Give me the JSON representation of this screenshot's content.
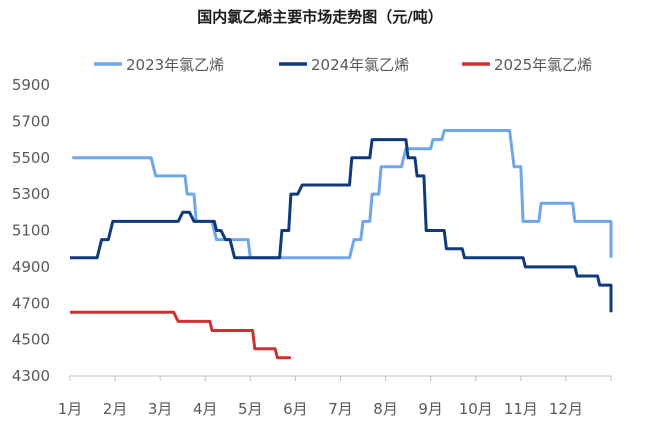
{
  "chart_data": {
    "type": "line",
    "title": "国内氯乙烯主要市场走势图（元/吨）",
    "xlabel": "",
    "ylabel": "",
    "ylim": [
      4300,
      5900
    ],
    "yticks": [
      4300,
      4500,
      4700,
      4900,
      5100,
      5300,
      5500,
      5700,
      5900
    ],
    "xlim": [
      1,
      13
    ],
    "categories": [
      "1月",
      "2月",
      "3月",
      "4月",
      "5月",
      "6月",
      "7月",
      "8月",
      "9月",
      "10月",
      "11月",
      "12月"
    ],
    "grid": false,
    "legend_position": "top",
    "series": [
      {
        "name": "2023年氯乙烯",
        "color": "#6fa7e8",
        "points": [
          [
            1.05,
            5500
          ],
          [
            2.8,
            5500
          ],
          [
            2.9,
            5400
          ],
          [
            3.55,
            5400
          ],
          [
            3.6,
            5300
          ],
          [
            3.75,
            5300
          ],
          [
            3.8,
            5150
          ],
          [
            4.15,
            5150
          ],
          [
            4.25,
            5050
          ],
          [
            4.95,
            5050
          ],
          [
            5.0,
            4950
          ],
          [
            7.2,
            4950
          ],
          [
            7.3,
            5050
          ],
          [
            7.45,
            5050
          ],
          [
            7.5,
            5150
          ],
          [
            7.65,
            5150
          ],
          [
            7.7,
            5300
          ],
          [
            7.85,
            5300
          ],
          [
            7.9,
            5450
          ],
          [
            8.35,
            5450
          ],
          [
            8.45,
            5550
          ],
          [
            9.0,
            5550
          ],
          [
            9.05,
            5600
          ],
          [
            9.25,
            5600
          ],
          [
            9.3,
            5650
          ],
          [
            10.75,
            5650
          ],
          [
            10.85,
            5450
          ],
          [
            11.0,
            5450
          ],
          [
            11.05,
            5150
          ],
          [
            11.4,
            5150
          ],
          [
            11.45,
            5250
          ],
          [
            12.15,
            5250
          ],
          [
            12.2,
            5150
          ],
          [
            13.0,
            5150
          ],
          [
            13.1,
            4950
          ],
          [
            13.2,
            4950
          ]
        ]
      },
      {
        "name": "2024年氯乙烯",
        "color": "#0f3a7c",
        "points": [
          [
            1.0,
            4950
          ],
          [
            1.6,
            4950
          ],
          [
            1.7,
            5050
          ],
          [
            1.85,
            5050
          ],
          [
            1.95,
            5150
          ],
          [
            3.4,
            5150
          ],
          [
            3.5,
            5200
          ],
          [
            3.65,
            5200
          ],
          [
            3.75,
            5150
          ],
          [
            4.2,
            5150
          ],
          [
            4.25,
            5100
          ],
          [
            4.35,
            5100
          ],
          [
            4.45,
            5050
          ],
          [
            4.55,
            5050
          ],
          [
            4.65,
            4950
          ],
          [
            5.65,
            4950
          ],
          [
            5.7,
            5100
          ],
          [
            5.85,
            5100
          ],
          [
            5.9,
            5300
          ],
          [
            6.05,
            5300
          ],
          [
            6.15,
            5350
          ],
          [
            7.2,
            5350
          ],
          [
            7.25,
            5500
          ],
          [
            7.65,
            5500
          ],
          [
            7.7,
            5600
          ],
          [
            8.45,
            5600
          ],
          [
            8.5,
            5500
          ],
          [
            8.65,
            5500
          ],
          [
            8.7,
            5400
          ],
          [
            8.85,
            5400
          ],
          [
            8.9,
            5100
          ],
          [
            9.3,
            5100
          ],
          [
            9.35,
            5000
          ],
          [
            9.7,
            5000
          ],
          [
            9.75,
            4950
          ],
          [
            11.05,
            4950
          ],
          [
            11.1,
            4900
          ],
          [
            12.2,
            4900
          ],
          [
            12.25,
            4850
          ],
          [
            12.7,
            4850
          ],
          [
            12.75,
            4800
          ],
          [
            13.15,
            4800
          ],
          [
            13.2,
            4700
          ],
          [
            13.4,
            4700
          ],
          [
            13.45,
            4650
          ]
        ]
      },
      {
        "name": "2025年氯乙烯",
        "color": "#d03030",
        "points": [
          [
            1.0,
            4650
          ],
          [
            3.3,
            4650
          ],
          [
            3.4,
            4600
          ],
          [
            4.1,
            4600
          ],
          [
            4.15,
            4550
          ],
          [
            5.05,
            4550
          ],
          [
            5.1,
            4450
          ],
          [
            5.55,
            4450
          ],
          [
            5.6,
            4400
          ],
          [
            5.9,
            4400
          ]
        ]
      }
    ]
  }
}
